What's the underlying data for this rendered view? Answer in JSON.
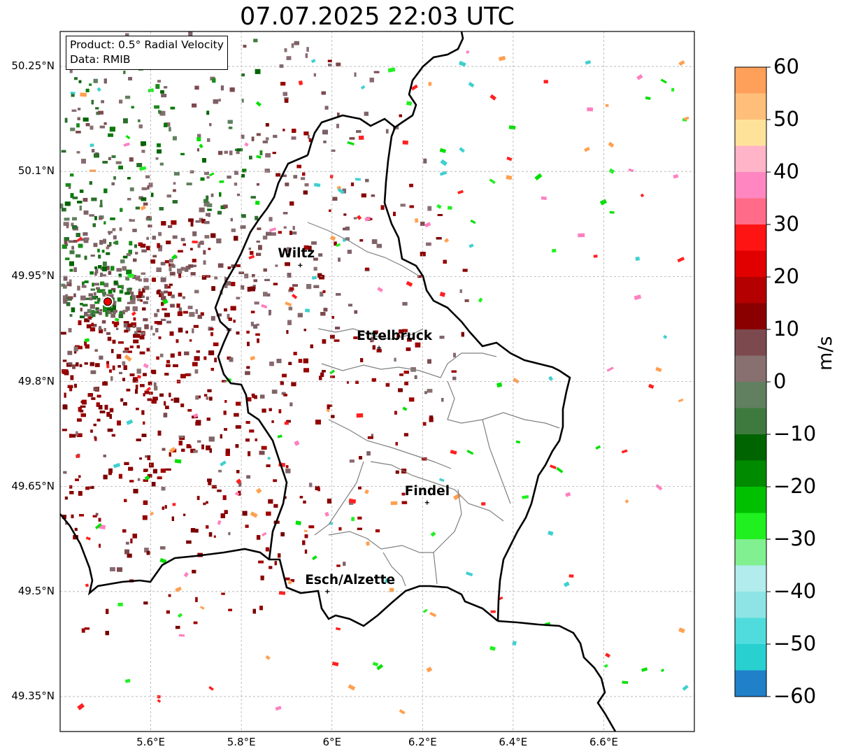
{
  "title": "07.07.2025 22:03 UTC",
  "info": {
    "product": "Product: 0.5° Radial Velocity",
    "data": "Data: RMIB"
  },
  "axes": {
    "lat_labels": [
      "50.25°N",
      "50.1°N",
      "49.95°N",
      "49.8°N",
      "49.65°N",
      "49.5°N",
      "49.35°N"
    ],
    "lat_values": [
      50.25,
      50.1,
      49.95,
      49.8,
      49.65,
      49.5,
      49.35
    ],
    "lon_labels": [
      "5.6°E",
      "5.8°E",
      "6°E",
      "6.2°E",
      "6.4°E",
      "6.6°E"
    ],
    "lon_values": [
      5.6,
      5.8,
      6.0,
      6.2,
      6.4,
      6.6
    ],
    "lat_range": [
      49.3,
      50.3
    ],
    "lon_range": [
      5.4,
      6.8
    ],
    "grid": true
  },
  "cities": [
    {
      "name": "Wiltz",
      "lon": 5.93,
      "lat": 49.966
    },
    {
      "name": "Ettelbruck",
      "lon": 6.104,
      "lat": 49.848
    },
    {
      "name": "Findel",
      "lon": 6.21,
      "lat": 49.627
    },
    {
      "name": "Esch/Alzette",
      "lon": 5.99,
      "lat": 49.5
    }
  ],
  "radar_site": {
    "lon": 5.505,
    "lat": 49.914
  },
  "colorbar": {
    "unit": "m/s",
    "vmin": -60,
    "vmax": 60,
    "ticks": [
      "60",
      "50",
      "40",
      "30",
      "20",
      "10",
      "0",
      "−10",
      "−20",
      "−30",
      "−40",
      "−50",
      "−60"
    ],
    "tick_values": [
      60,
      50,
      40,
      30,
      20,
      10,
      0,
      -10,
      -20,
      -30,
      -40,
      -50,
      -60
    ],
    "colors": [
      {
        "from": 55,
        "to": 60,
        "color": "#ffa05a"
      },
      {
        "from": 50,
        "to": 55,
        "color": "#ffbf7a"
      },
      {
        "from": 45,
        "to": 50,
        "color": "#ffe29a"
      },
      {
        "from": 40,
        "to": 45,
        "color": "#ffb4c8"
      },
      {
        "from": 35,
        "to": 40,
        "color": "#ff86c0"
      },
      {
        "from": 30,
        "to": 35,
        "color": "#ff6b88"
      },
      {
        "from": 25,
        "to": 30,
        "color": "#ff1414"
      },
      {
        "from": 20,
        "to": 25,
        "color": "#e00000"
      },
      {
        "from": 15,
        "to": 20,
        "color": "#b40000"
      },
      {
        "from": 10,
        "to": 15,
        "color": "#8a0000"
      },
      {
        "from": 5,
        "to": 10,
        "color": "#7c4a4e"
      },
      {
        "from": 0,
        "to": 5,
        "color": "#887070"
      },
      {
        "from": -5,
        "to": 0,
        "color": "#608060"
      },
      {
        "from": -10,
        "to": -5,
        "color": "#3e7a3e"
      },
      {
        "from": -15,
        "to": -10,
        "color": "#006400"
      },
      {
        "from": -20,
        "to": -15,
        "color": "#008a00"
      },
      {
        "from": -25,
        "to": -20,
        "color": "#00c000"
      },
      {
        "from": -30,
        "to": -25,
        "color": "#20f020"
      },
      {
        "from": -35,
        "to": -30,
        "color": "#80f090"
      },
      {
        "from": -40,
        "to": -35,
        "color": "#b2ecec"
      },
      {
        "from": -45,
        "to": -40,
        "color": "#8ee4e4"
      },
      {
        "from": -50,
        "to": -45,
        "color": "#50dcdc"
      },
      {
        "from": -55,
        "to": -50,
        "color": "#28d0d0"
      },
      {
        "from": -60,
        "to": -55,
        "color": "#2080c8"
      }
    ]
  },
  "colors": {
    "border": "#000000",
    "admin": "#808080",
    "grid": "#b0b0b0",
    "outbound_strong": "#8a0000",
    "outbound_weak": "#887070",
    "inbound": "#006400",
    "radar_marker": "#ee0000"
  }
}
